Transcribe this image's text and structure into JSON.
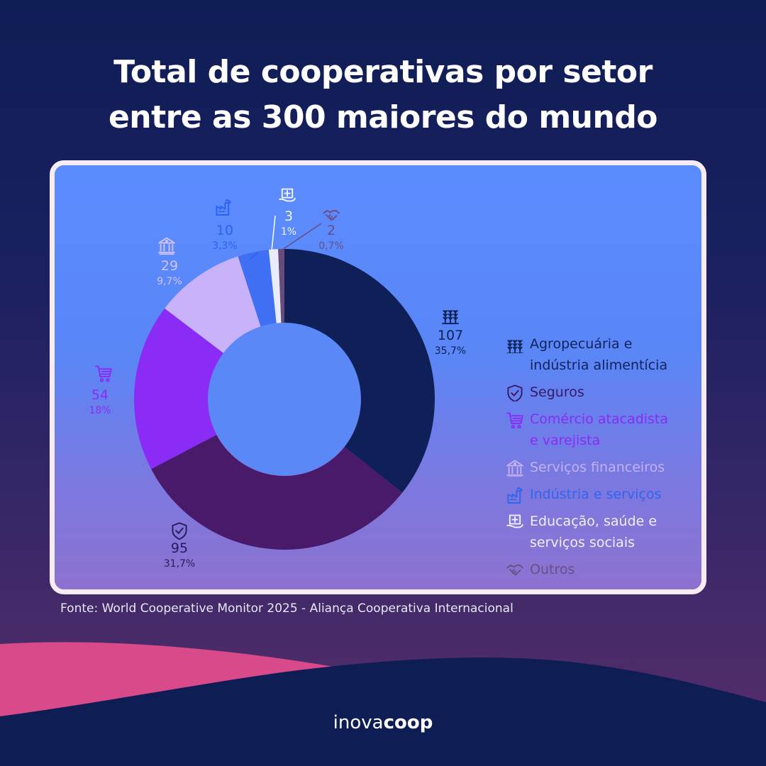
{
  "title": {
    "line1": "Total de cooperativas por setor",
    "line2": "entre as 300 maiores do mundo"
  },
  "chart_data": {
    "type": "pie",
    "subtype": "donut",
    "total": 300,
    "slices": [
      {
        "name": "Agropecuária e indústria alimentícia",
        "value": 107,
        "percent": "35,7%",
        "color": "#0f1f57",
        "icon": "wheat-icon"
      },
      {
        "name": "Seguros",
        "value": 95,
        "percent": "31,7%",
        "color": "#4a1a6a",
        "icon": "shield-check-icon"
      },
      {
        "name": "Comércio atacadista e varejista",
        "value": 54,
        "percent": "18%",
        "color": "#8a2cf6",
        "icon": "shopping-cart-icon"
      },
      {
        "name": "Serviços financeiros",
        "value": 29,
        "percent": "9,7%",
        "color": "#c8b2fa",
        "icon": "bank-icon"
      },
      {
        "name": "Indústria e serviços",
        "value": 10,
        "percent": "3,3%",
        "color": "#3f6ff2",
        "icon": "factory-icon"
      },
      {
        "name": "Educação, saúde e serviços sociais",
        "value": 3,
        "percent": "1%",
        "color": "#e8ecfb",
        "icon": "medical-hand-icon"
      },
      {
        "name": "Outros",
        "value": 2,
        "percent": "0,7%",
        "color": "#6a4a7a",
        "icon": "handshake-icon"
      }
    ]
  },
  "legend": {
    "items": [
      {
        "line1": "Agropecuária e",
        "line2": "indústria alimentícia",
        "color": "#10245c",
        "icon": "wheat-icon"
      },
      {
        "line1": "Seguros",
        "line2": "",
        "color": "#3a1a66",
        "icon": "shield-check-icon"
      },
      {
        "line1": "Comércio atacadista",
        "line2": "e varejista",
        "color": "#8a2cf6",
        "icon": "shopping-cart-icon"
      },
      {
        "line1": "Serviços financeiros",
        "line2": "",
        "color": "#c4b0f2",
        "icon": "bank-icon"
      },
      {
        "line1": "Indústria e serviços",
        "line2": "",
        "color": "#2f66f0",
        "icon": "factory-icon"
      },
      {
        "line1": "Educação, saúde e",
        "line2": "serviços sociais",
        "color": "#eef1fb",
        "icon": "medical-hand-icon"
      },
      {
        "line1": "Outros",
        "line2": "",
        "color": "#6a4e86",
        "icon": "handshake-icon"
      }
    ]
  },
  "source": "Fonte: World Cooperative Monitor 2025 - Aliança Cooperativa Internacional",
  "brand": {
    "part1": "inova",
    "part2": "coop"
  }
}
